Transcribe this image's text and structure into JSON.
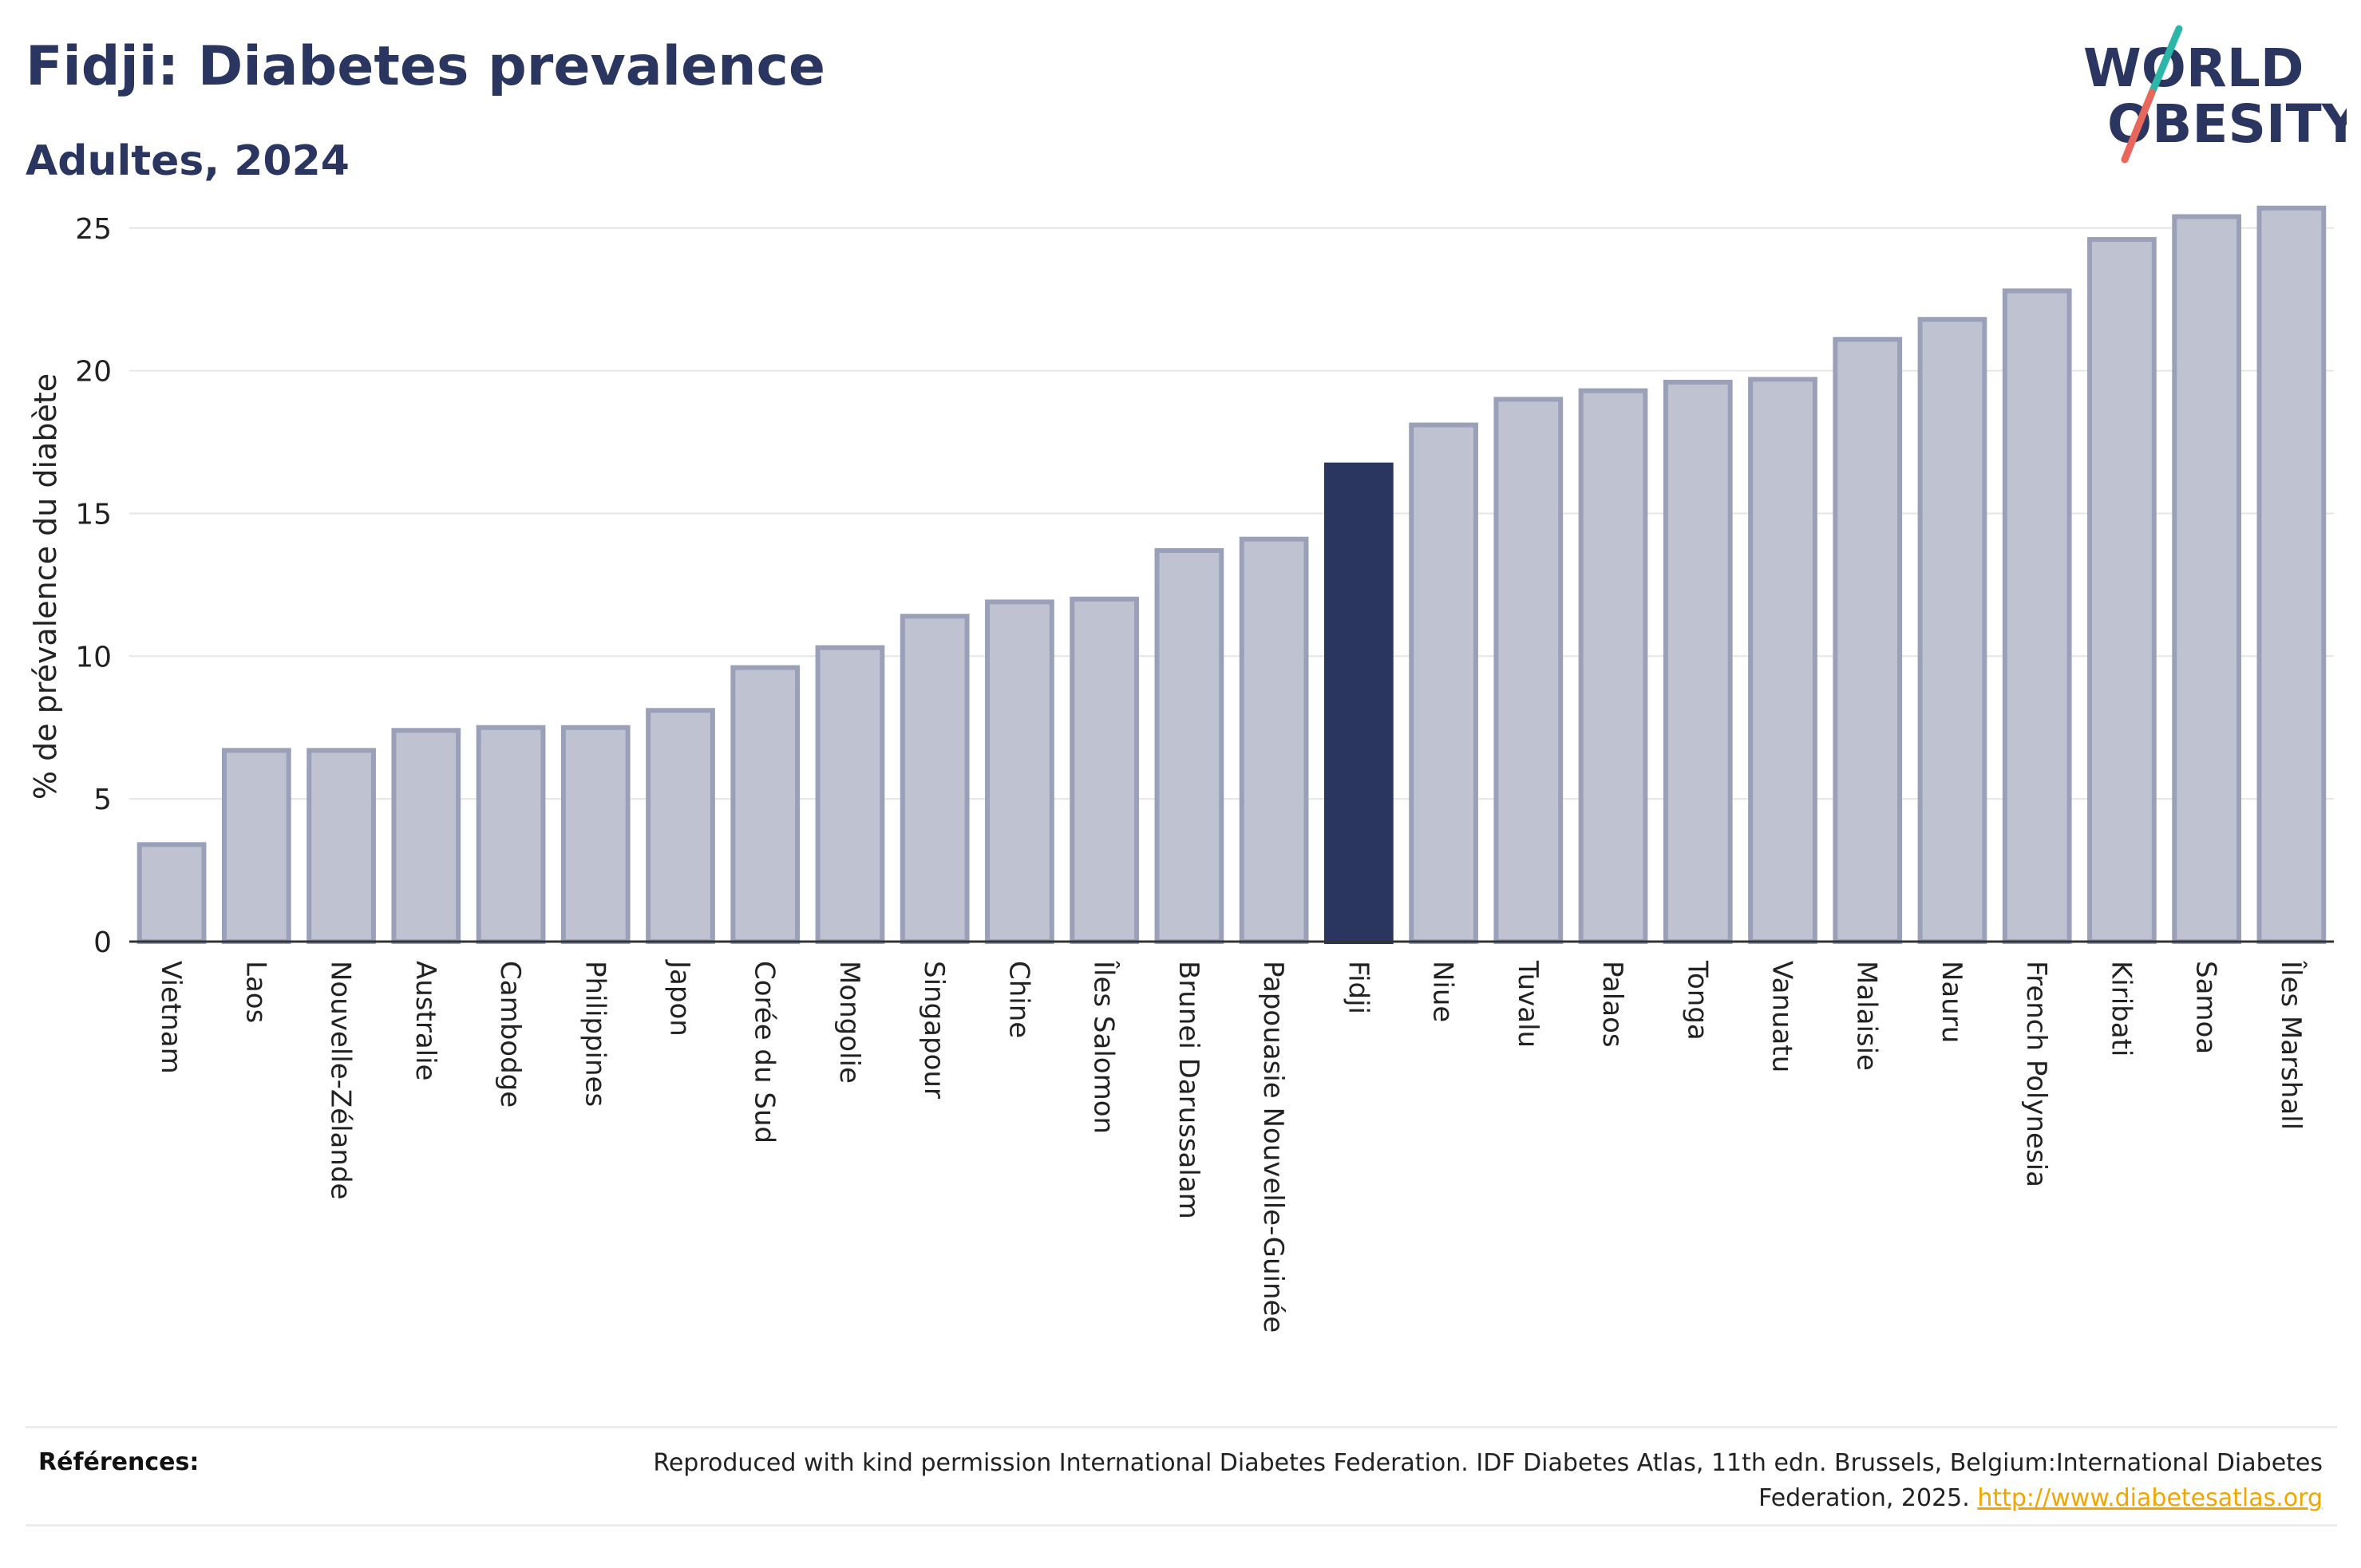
{
  "header": {
    "title": "Fidji: Diabetes prevalence",
    "subtitle": "Adultes, 2024"
  },
  "logo": {
    "line1": "WORLD",
    "line2": "OBESITY",
    "text_color": "#2a3560",
    "slash_top_color": "#2bb6a8",
    "slash_bottom_color": "#e8675a"
  },
  "colors": {
    "bar_fill": "#bfc3d1",
    "bar_stroke": "#9aa0b8",
    "highlight": "#2a3560",
    "grid": "#e6e6e6",
    "axis": "#333333"
  },
  "chart_data": {
    "type": "bar",
    "title": "Fidji: Diabetes prevalence",
    "subtitle": "Adultes, 2024",
    "xlabel": "",
    "ylabel": "% de prévalence du diabète",
    "ylim": [
      0,
      26
    ],
    "yticks": [
      0,
      5,
      10,
      15,
      20,
      25
    ],
    "grid": true,
    "highlight": "Fidji",
    "categories": [
      "Vietnam",
      "Laos",
      "Nouvelle-Zélande",
      "Australie",
      "Cambodge",
      "Philippines",
      "Japon",
      "Corée du Sud",
      "Mongolie",
      "Singapour",
      "Chine",
      "Îles Salomon",
      "Brunei Darussalam",
      "Papouasie Nouvelle-Guinée",
      "Fidji",
      "Niue",
      "Tuvalu",
      "Palaos",
      "Tonga",
      "Vanuatu",
      "Malaisie",
      "Nauru",
      "French Polynesia",
      "Kiribati",
      "Samoa",
      "Îles Marshall"
    ],
    "values": [
      3.4,
      6.7,
      6.7,
      7.4,
      7.5,
      7.5,
      8.1,
      9.6,
      10.3,
      11.4,
      11.9,
      12.0,
      13.7,
      14.1,
      16.7,
      18.1,
      19.0,
      19.3,
      19.6,
      19.7,
      21.1,
      21.8,
      22.8,
      24.6,
      25.4,
      25.7
    ]
  },
  "footer": {
    "references_label": "Références:",
    "references_text": "Reproduced with kind permission International Diabetes Federation. IDF Diabetes Atlas, 11th edn. Brussels, Belgium:International Diabetes Federation, 2025.",
    "references_link": "http://www.diabetesatlas.org"
  }
}
